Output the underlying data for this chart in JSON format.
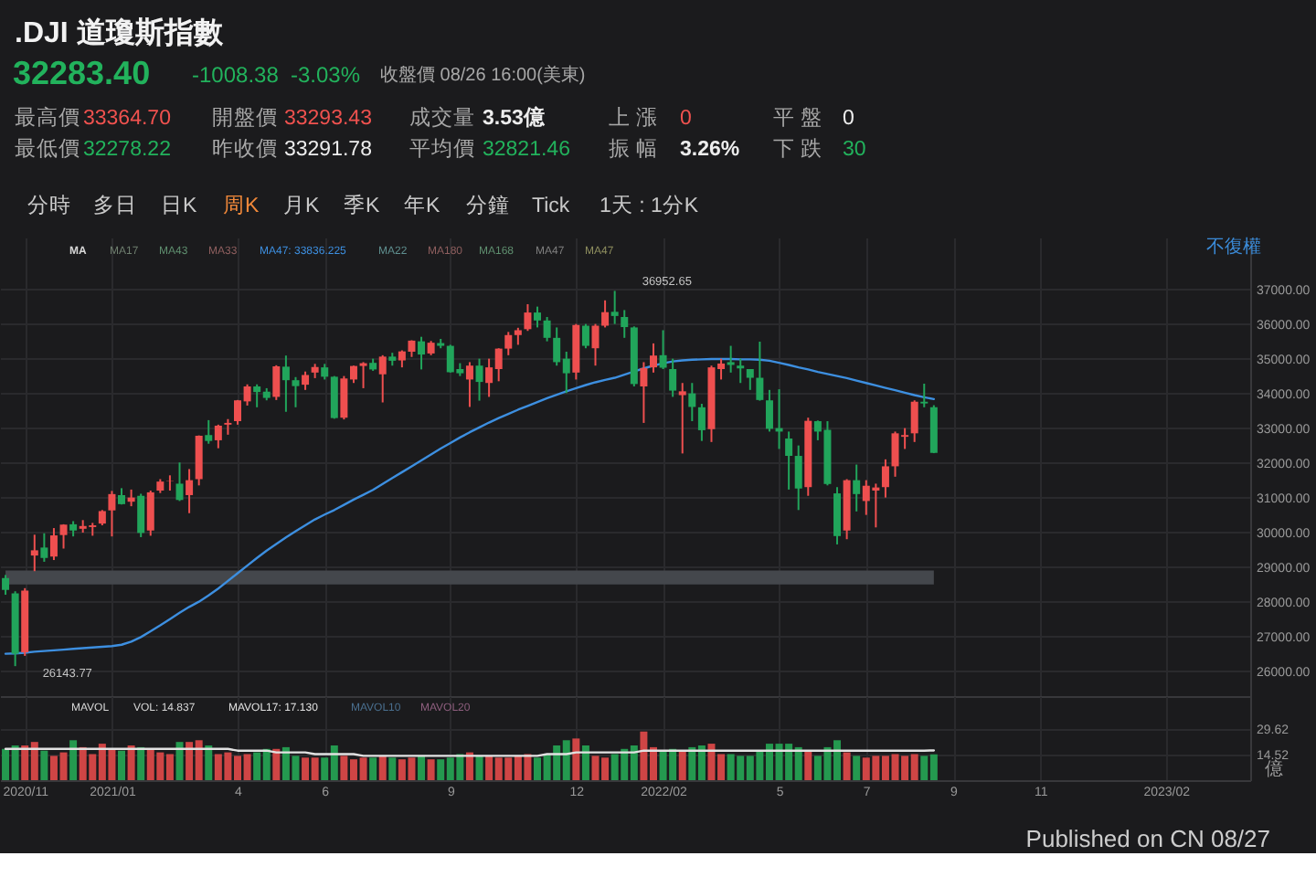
{
  "chart_data": [
    {
      "type": "other",
      "title": ".DJI 道瓊斯指數",
      "annotations": [
        "32283.40",
        "-1008.38",
        "-3.03%",
        "收盤價 08/26 16:00(美東)",
        "最高價",
        "33364.70",
        "開盤價",
        "33293.43",
        "成交量",
        "3.53億",
        "上 漲",
        "0",
        "平 盤",
        "0",
        "最低價",
        "32278.22",
        "昨收價",
        "33291.78",
        "平均價",
        "32821.46",
        "振 幅",
        "3.26%",
        "下 跌",
        "30",
        "分時",
        "多日",
        "日K",
        "周K",
        "月K",
        "季K",
        "年K",
        "分鐘",
        "Tick",
        "1天 : 1分K"
      ]
    },
    {
      "type": "candlestick",
      "x": [
        "2020-10-19",
        "2020-10-26",
        "2020-11-02",
        "2020-11-09",
        "2020-11-16",
        "2020-11-23",
        "2020-11-30",
        "2020-12-07",
        "2020-12-14",
        "2020-12-21",
        "2020-12-28",
        "2021-01-04",
        "2021-01-11",
        "2021-01-18",
        "2021-01-25",
        "2021-02-01",
        "2021-02-08",
        "2021-02-15",
        "2021-02-22",
        "2021-03-01",
        "2021-03-08",
        "2021-03-15",
        "2021-03-22",
        "2021-03-29",
        "2021-04-05",
        "2021-04-12",
        "2021-04-19",
        "2021-04-26",
        "2021-05-03",
        "2021-05-10",
        "2021-05-17",
        "2021-05-24",
        "2021-05-31",
        "2021-06-07",
        "2021-06-14",
        "2021-06-21",
        "2021-06-28",
        "2021-07-05",
        "2021-07-12",
        "2021-07-19",
        "2021-07-26",
        "2021-08-02",
        "2021-08-09",
        "2021-08-16",
        "2021-08-23",
        "2021-08-30",
        "2021-09-06",
        "2021-09-13",
        "2021-09-20",
        "2021-09-27",
        "2021-10-04",
        "2021-10-11",
        "2021-10-18",
        "2021-10-25",
        "2021-11-01",
        "2021-11-08",
        "2021-11-15",
        "2021-11-22",
        "2021-11-29",
        "2021-12-06",
        "2021-12-13",
        "2021-12-20",
        "2021-12-27",
        "2022-01-03",
        "2022-01-10",
        "2022-01-17",
        "2022-01-24",
        "2022-01-31",
        "2022-02-07",
        "2022-02-14",
        "2022-02-21",
        "2022-02-28",
        "2022-03-07",
        "2022-03-14",
        "2022-03-21",
        "2022-03-28",
        "2022-04-04",
        "2022-04-11",
        "2022-04-18",
        "2022-04-25",
        "2022-05-02",
        "2022-05-09",
        "2022-05-16",
        "2022-05-23",
        "2022-05-30",
        "2022-06-06",
        "2022-06-13",
        "2022-06-20",
        "2022-06-27",
        "2022-07-04",
        "2022-07-11",
        "2022-07-18",
        "2022-07-25",
        "2022-08-01",
        "2022-08-08",
        "2022-08-15",
        "2022-08-22"
      ],
      "ohlc": [
        [
          28680,
          28770,
          28200,
          28340
        ],
        [
          28240,
          28300,
          26143.77,
          26500
        ],
        [
          26540,
          28390,
          26440,
          28320
        ],
        [
          29330,
          29930,
          28880,
          29480
        ],
        [
          29560,
          29970,
          29150,
          29260
        ],
        [
          29300,
          30120,
          29200,
          29910
        ],
        [
          29920,
          30230,
          29530,
          30220
        ],
        [
          30230,
          30320,
          29880,
          30050
        ],
        [
          30100,
          30350,
          29990,
          30180
        ],
        [
          30150,
          30270,
          29900,
          30200
        ],
        [
          30250,
          30640,
          30200,
          30610
        ],
        [
          30630,
          31190,
          29880,
          31100
        ],
        [
          31070,
          31270,
          30800,
          30810
        ],
        [
          30880,
          31230,
          30750,
          31000
        ],
        [
          31050,
          31110,
          29860,
          29980
        ],
        [
          30050,
          31200,
          29900,
          31150
        ],
        [
          31200,
          31530,
          31130,
          31460
        ],
        [
          31480,
          31640,
          31200,
          31490
        ],
        [
          31400,
          32010,
          30900,
          30930
        ],
        [
          31070,
          31820,
          30550,
          31500
        ],
        [
          31530,
          32790,
          31350,
          32780
        ],
        [
          32800,
          33230,
          32550,
          32630
        ],
        [
          32650,
          33100,
          32420,
          33070
        ],
        [
          33100,
          33260,
          32810,
          33150
        ],
        [
          33200,
          33810,
          33100,
          33800
        ],
        [
          33770,
          34260,
          33650,
          34200
        ],
        [
          34200,
          34260,
          33600,
          34040
        ],
        [
          34050,
          34150,
          33800,
          33870
        ],
        [
          33900,
          34810,
          33810,
          34780
        ],
        [
          34770,
          35090,
          33470,
          34380
        ],
        [
          34380,
          34470,
          33600,
          34210
        ],
        [
          34250,
          34630,
          34100,
          34530
        ],
        [
          34600,
          34850,
          34440,
          34760
        ],
        [
          34750,
          34850,
          34400,
          34480
        ],
        [
          34480,
          34500,
          33270,
          33290
        ],
        [
          33300,
          34500,
          33250,
          34430
        ],
        [
          34400,
          34800,
          34300,
          34790
        ],
        [
          34790,
          34900,
          34150,
          34870
        ],
        [
          34880,
          35000,
          34650,
          34690
        ],
        [
          34550,
          35100,
          33740,
          35060
        ],
        [
          35060,
          35170,
          34800,
          34940
        ],
        [
          34950,
          35240,
          34750,
          35210
        ],
        [
          35200,
          35530,
          35050,
          35520
        ],
        [
          35500,
          35630,
          34690,
          35120
        ],
        [
          35150,
          35510,
          35100,
          35460
        ],
        [
          35450,
          35570,
          35300,
          35370
        ],
        [
          35370,
          35400,
          34600,
          34610
        ],
        [
          34700,
          34870,
          34500,
          34580
        ],
        [
          34400,
          34900,
          33610,
          34800
        ],
        [
          34800,
          35000,
          33790,
          34330
        ],
        [
          34300,
          35000,
          33900,
          34750
        ],
        [
          34700,
          35300,
          34350,
          35290
        ],
        [
          35290,
          35770,
          35100,
          35680
        ],
        [
          35680,
          35890,
          35400,
          35820
        ],
        [
          35850,
          36570,
          35800,
          36330
        ],
        [
          36330,
          36500,
          35900,
          36100
        ],
        [
          36100,
          36200,
          35500,
          35600
        ],
        [
          35600,
          35900,
          34800,
          34900
        ],
        [
          35000,
          35200,
          34010,
          34580
        ],
        [
          34600,
          36000,
          34400,
          35970
        ],
        [
          35950,
          36000,
          35300,
          35370
        ],
        [
          35300,
          36000,
          34800,
          35950
        ],
        [
          35950,
          36680,
          35900,
          36340
        ],
        [
          36350,
          36952.65,
          36000,
          36230
        ],
        [
          36200,
          36400,
          35600,
          35910
        ],
        [
          35900,
          35930,
          34200,
          34270
        ],
        [
          34200,
          34900,
          33150,
          34730
        ],
        [
          34750,
          35440,
          34600,
          35090
        ],
        [
          35100,
          35820,
          34700,
          34740
        ],
        [
          34700,
          35000,
          33900,
          34080
        ],
        [
          33950,
          34300,
          32270,
          34060
        ],
        [
          34000,
          34300,
          33200,
          33610
        ],
        [
          33600,
          33700,
          32630,
          32940
        ],
        [
          32970,
          34800,
          32600,
          34750
        ],
        [
          34700,
          35000,
          34400,
          34860
        ],
        [
          34900,
          35370,
          34600,
          34820
        ],
        [
          34800,
          35000,
          34300,
          34720
        ],
        [
          34700,
          34700,
          34100,
          34450
        ],
        [
          34450,
          35490,
          33790,
          33810
        ],
        [
          33800,
          34100,
          32900,
          32980
        ],
        [
          33000,
          34120,
          32400,
          32900
        ],
        [
          32700,
          32900,
          31230,
          32200
        ],
        [
          32200,
          32500,
          30640,
          31260
        ],
        [
          31300,
          33300,
          31050,
          33210
        ],
        [
          33200,
          33220,
          32650,
          32900
        ],
        [
          32950,
          33200,
          31350,
          31390
        ],
        [
          31120,
          31300,
          29650,
          29890
        ],
        [
          30050,
          31530,
          29800,
          31500
        ],
        [
          31500,
          31950,
          30600,
          31100
        ],
        [
          30900,
          31500,
          30500,
          31340
        ],
        [
          31200,
          31400,
          30140,
          31290
        ],
        [
          31300,
          32100,
          31000,
          31900
        ],
        [
          31900,
          32900,
          31600,
          32850
        ],
        [
          32750,
          33000,
          32400,
          32800
        ],
        [
          32850,
          33800,
          32600,
          33760
        ],
        [
          33760,
          34280,
          33600,
          33710
        ],
        [
          33600,
          33660,
          32278.22,
          32283.4
        ]
      ],
      "colors": [
        "#21a55b",
        "#21a55b",
        "#ee4f4f",
        "#ee4f4f",
        "#21a55b",
        "#ee4f4f",
        "#ee4f4f",
        "#21a55b",
        "#ee4f4f",
        "#ee4f4f",
        "#ee4f4f",
        "#ee4f4f",
        "#21a55b",
        "#ee4f4f",
        "#21a55b",
        "#ee4f4f",
        "#ee4f4f",
        "#ee4f4f",
        "#21a55b",
        "#ee4f4f",
        "#ee4f4f",
        "#21a55b",
        "#ee4f4f",
        "#ee4f4f",
        "#ee4f4f",
        "#ee4f4f",
        "#21a55b",
        "#21a55b",
        "#ee4f4f",
        "#21a55b",
        "#21a55b",
        "#ee4f4f",
        "#ee4f4f",
        "#21a55b",
        "#21a55b",
        "#ee4f4f",
        "#ee4f4f",
        "#ee4f4f",
        "#21a55b",
        "#ee4f4f",
        "#21a55b",
        "#ee4f4f",
        "#ee4f4f",
        "#21a55b",
        "#ee4f4f",
        "#21a55b",
        "#21a55b",
        "#21a55b",
        "#ee4f4f",
        "#21a55b",
        "#ee4f4f",
        "#ee4f4f",
        "#ee4f4f",
        "#ee4f4f",
        "#ee4f4f",
        "#21a55b",
        "#21a55b",
        "#21a55b",
        "#21a55b",
        "#ee4f4f",
        "#21a55b",
        "#ee4f4f",
        "#ee4f4f",
        "#21a55b",
        "#21a55b",
        "#21a55b",
        "#ee4f4f",
        "#ee4f4f",
        "#21a55b",
        "#21a55b",
        "#ee4f4f",
        "#21a55b",
        "#21a55b",
        "#ee4f4f",
        "#ee4f4f",
        "#21a55b",
        "#21a55b",
        "#21a55b",
        "#21a55b",
        "#21a55b",
        "#21a55b",
        "#21a55b",
        "#21a55b",
        "#ee4f4f",
        "#21a55b",
        "#21a55b",
        "#21a55b",
        "#ee4f4f",
        "#21a55b",
        "#ee4f4f",
        "#ee4f4f",
        "#ee4f4f",
        "#ee4f4f",
        "#ee4f4f",
        "#ee4f4f",
        "#21a55b",
        "#21a55b"
      ],
      "series": [
        {
          "name": "MA47: 33836.225",
          "type": "line",
          "color": "#3d8fe0",
          "values": [
            26500,
            26510,
            26530,
            26560,
            26580,
            26600,
            26620,
            26640,
            26660,
            26680,
            26700,
            26720,
            26760,
            26850,
            26980,
            27150,
            27320,
            27500,
            27680,
            27850,
            28000,
            28180,
            28380,
            28600,
            28820,
            29040,
            29260,
            29470,
            29660,
            29850,
            30030,
            30200,
            30370,
            30510,
            30640,
            30790,
            30940,
            31080,
            31220,
            31390,
            31560,
            31730,
            31900,
            32070,
            32240,
            32410,
            32570,
            32730,
            32880,
            33020,
            33160,
            33290,
            33410,
            33530,
            33640,
            33750,
            33860,
            33960,
            34060,
            34150,
            34240,
            34320,
            34390,
            34450,
            34540,
            34630,
            34720,
            34800,
            34870,
            34920,
            34950,
            34970,
            34980,
            34990,
            34990,
            34990,
            34980,
            34980,
            34970,
            34940,
            34880,
            34820,
            34750,
            34690,
            34620,
            34560,
            34500,
            34440,
            34370,
            34300,
            34230,
            34160,
            34090,
            34020,
            33950,
            33890,
            33836.225
          ]
        }
      ],
      "legend_title": "MA",
      "legend": "top left",
      "xlim": [
        "2020-10-15",
        "2023-04-08"
      ],
      "xticks": [
        {
          "value": "2020-11-02",
          "label": null
        },
        {
          "value": "2021-01-04",
          "label": null
        },
        {
          "value": "2021-04-05",
          "label": null
        },
        {
          "value": "2021-06-07",
          "label": null
        },
        {
          "value": "2021-09-06",
          "label": null
        },
        {
          "value": "2021-12-06",
          "label": null
        },
        {
          "value": "2022-02-07",
          "label": null
        },
        {
          "value": "2022-05-02",
          "label": null
        },
        {
          "value": "2022-07-04",
          "label": null
        },
        {
          "value": "2022-09-05",
          "label": null
        },
        {
          "value": "2022-11-07",
          "label": null
        },
        {
          "value": "2023-02-06",
          "label": null
        }
      ],
      "ylim": [
        25280,
        38490
      ],
      "yticks": [
        {
          "value": 26000,
          "label": "26000.00"
        },
        {
          "value": 27000,
          "label": "27000.00"
        },
        {
          "value": 28000,
          "label": "28000.00"
        },
        {
          "value": 29000,
          "label": "29000.00"
        },
        {
          "value": 30000,
          "label": "30000.00"
        },
        {
          "value": 31000,
          "label": "31000.00"
        },
        {
          "value": 32000,
          "label": "32000.00"
        },
        {
          "value": 33000,
          "label": "33000.00"
        },
        {
          "value": 34000,
          "label": "34000.00"
        },
        {
          "value": 35000,
          "label": "35000.00"
        },
        {
          "value": 36000,
          "label": "36000.00"
        },
        {
          "value": 37000,
          "label": "37000.00"
        }
      ],
      "tick_labels": "y",
      "grid": true,
      "bands": [
        {
          "axis": "y",
          "from": 28500,
          "to": 28900,
          "color": "#44474c"
        }
      ],
      "annotations": [
        "不復權",
        "MA17",
        "MA43",
        "MA33",
        "MA22",
        "MA180",
        "MA168",
        "MA47",
        "MA47",
        {
          "text": "36952.65",
          "x": "2022-01-03",
          "y": 36952.65
        },
        {
          "text": "26143.77",
          "x": "2020-10-26",
          "y": 26143.77
        }
      ]
    },
    {
      "type": "bar",
      "x": [
        "2020-10-19",
        "2020-10-26",
        "2020-11-02",
        "2020-11-09",
        "2020-11-16",
        "2020-11-23",
        "2020-11-30",
        "2020-12-07",
        "2020-12-14",
        "2020-12-21",
        "2020-12-28",
        "2021-01-04",
        "2021-01-11",
        "2021-01-18",
        "2021-01-25",
        "2021-02-01",
        "2021-02-08",
        "2021-02-15",
        "2021-02-22",
        "2021-03-01",
        "2021-03-08",
        "2021-03-15",
        "2021-03-22",
        "2021-03-29",
        "2021-04-05",
        "2021-04-12",
        "2021-04-19",
        "2021-04-26",
        "2021-05-03",
        "2021-05-10",
        "2021-05-17",
        "2021-05-24",
        "2021-05-31",
        "2021-06-07",
        "2021-06-14",
        "2021-06-21",
        "2021-06-28",
        "2021-07-05",
        "2021-07-12",
        "2021-07-19",
        "2021-07-26",
        "2021-08-02",
        "2021-08-09",
        "2021-08-16",
        "2021-08-23",
        "2021-08-30",
        "2021-09-06",
        "2021-09-13",
        "2021-09-20",
        "2021-09-27",
        "2021-10-04",
        "2021-10-11",
        "2021-10-18",
        "2021-10-25",
        "2021-11-01",
        "2021-11-08",
        "2021-11-15",
        "2021-11-22",
        "2021-11-29",
        "2021-12-06",
        "2021-12-13",
        "2021-12-20",
        "2021-12-27",
        "2022-01-03",
        "2022-01-10",
        "2022-01-17",
        "2022-01-24",
        "2022-01-31",
        "2022-02-07",
        "2022-02-14",
        "2022-02-21",
        "2022-02-28",
        "2022-03-07",
        "2022-03-14",
        "2022-03-21",
        "2022-03-28",
        "2022-04-04",
        "2022-04-11",
        "2022-04-18",
        "2022-04-25",
        "2022-05-02",
        "2022-05-09",
        "2022-05-16",
        "2022-05-23",
        "2022-05-30",
        "2022-06-06",
        "2022-06-13",
        "2022-06-20",
        "2022-06-27",
        "2022-07-04",
        "2022-07-11",
        "2022-07-18",
        "2022-07-25",
        "2022-08-01",
        "2022-08-08",
        "2022-08-15",
        "2022-08-22"
      ],
      "series": [
        {
          "values": [
            18,
            20,
            20,
            22,
            17,
            14,
            16,
            23,
            19,
            15,
            21,
            18,
            17,
            20,
            19,
            18,
            16,
            15,
            22,
            22,
            23,
            20,
            15,
            16,
            14,
            15,
            16,
            18,
            18,
            19,
            14,
            13,
            13,
            13,
            20,
            14,
            12,
            13,
            13,
            14,
            13,
            12,
            13,
            14,
            12,
            12,
            13,
            15,
            16,
            14,
            14,
            13,
            13,
            14,
            15,
            13,
            15,
            20,
            23,
            24,
            20,
            14,
            13,
            15,
            18,
            20,
            28,
            19,
            17,
            18,
            17,
            19,
            20,
            21,
            15,
            15,
            14,
            14,
            17,
            21,
            21,
            21,
            19,
            17,
            14,
            19,
            23,
            16,
            14,
            13,
            14,
            14,
            15,
            14,
            15,
            14,
            14.837
          ],
          "colors": [
            "#24994f",
            "#24994f",
            "#cf4545",
            "#cf4545",
            "#24994f",
            "#cf4545",
            "#cf4545",
            "#24994f",
            "#cf4545",
            "#cf4545",
            "#cf4545",
            "#cf4545",
            "#24994f",
            "#cf4545",
            "#24994f",
            "#cf4545",
            "#cf4545",
            "#cf4545",
            "#24994f",
            "#cf4545",
            "#cf4545",
            "#24994f",
            "#cf4545",
            "#cf4545",
            "#cf4545",
            "#cf4545",
            "#24994f",
            "#24994f",
            "#cf4545",
            "#24994f",
            "#24994f",
            "#cf4545",
            "#cf4545",
            "#24994f",
            "#24994f",
            "#cf4545",
            "#cf4545",
            "#cf4545",
            "#24994f",
            "#cf4545",
            "#24994f",
            "#cf4545",
            "#cf4545",
            "#24994f",
            "#cf4545",
            "#24994f",
            "#24994f",
            "#24994f",
            "#cf4545",
            "#24994f",
            "#cf4545",
            "#cf4545",
            "#cf4545",
            "#cf4545",
            "#cf4545",
            "#24994f",
            "#24994f",
            "#24994f",
            "#24994f",
            "#cf4545",
            "#24994f",
            "#cf4545",
            "#cf4545",
            "#24994f",
            "#24994f",
            "#24994f",
            "#cf4545",
            "#cf4545",
            "#24994f",
            "#24994f",
            "#cf4545",
            "#24994f",
            "#24994f",
            "#cf4545",
            "#cf4545",
            "#24994f",
            "#24994f",
            "#24994f",
            "#24994f",
            "#24994f",
            "#24994f",
            "#24994f",
            "#24994f",
            "#cf4545",
            "#24994f",
            "#24994f",
            "#24994f",
            "#cf4545",
            "#24994f",
            "#cf4545",
            "#cf4545",
            "#cf4545",
            "#cf4545",
            "#cf4545",
            "#cf4545",
            "#24994f",
            "#24994f"
          ]
        },
        {
          "name": "MAVOL17: 17.130",
          "type": "line",
          "color": "#e2e2e2",
          "values": [
            18,
            18,
            18,
            18,
            18,
            18,
            18,
            18,
            18,
            18,
            18,
            18,
            18,
            18,
            18,
            18,
            18,
            18,
            18,
            18,
            18,
            18,
            18,
            18,
            17,
            17,
            17,
            17,
            16,
            16,
            16,
            16,
            15,
            15,
            15,
            15,
            15,
            14,
            14,
            14,
            14,
            14,
            14,
            14,
            14,
            14,
            14,
            14,
            14,
            14,
            14,
            14,
            14,
            14,
            14,
            14,
            15,
            15,
            15,
            16,
            16,
            16,
            16,
            16,
            16,
            16,
            17,
            17,
            17,
            17,
            17,
            17,
            17,
            17,
            17,
            17,
            17,
            17,
            17,
            17,
            17,
            17,
            17,
            17,
            17,
            17,
            17,
            17,
            17,
            17,
            17,
            17,
            17,
            17,
            17,
            17,
            17.13
          ]
        }
      ],
      "legend_title": "MAVOL",
      "legend": "top left",
      "xlim": [
        "2020-10-15",
        "2023-04-08"
      ],
      "xticks": [
        {
          "value": "2020-11-02",
          "label": "2020/11"
        },
        {
          "value": "2021-01-04",
          "label": "2021/01"
        },
        {
          "value": "2021-04-05",
          "label": "4"
        },
        {
          "value": "2021-06-07",
          "label": "6"
        },
        {
          "value": "2021-09-06",
          "label": "9"
        },
        {
          "value": "2021-12-06",
          "label": "12"
        },
        {
          "value": "2022-02-07",
          "label": "2022/02"
        },
        {
          "value": "2022-05-02",
          "label": "5"
        },
        {
          "value": "2022-07-04",
          "label": "7"
        },
        {
          "value": "2022-09-05",
          "label": "9"
        },
        {
          "value": "2022-11-07",
          "label": "11"
        },
        {
          "value": "2023-02-06",
          "label": "2023/02"
        }
      ],
      "ylim": [
        0,
        48.4
      ],
      "yticks": [
        29.62,
        14.52
      ],
      "ylabel": "億",
      "grid": true,
      "annotations": [
        "VOL: 14.837",
        "MAVOL10",
        "MAVOL20",
        "Published on CN 08/27"
      ]
    }
  ]
}
